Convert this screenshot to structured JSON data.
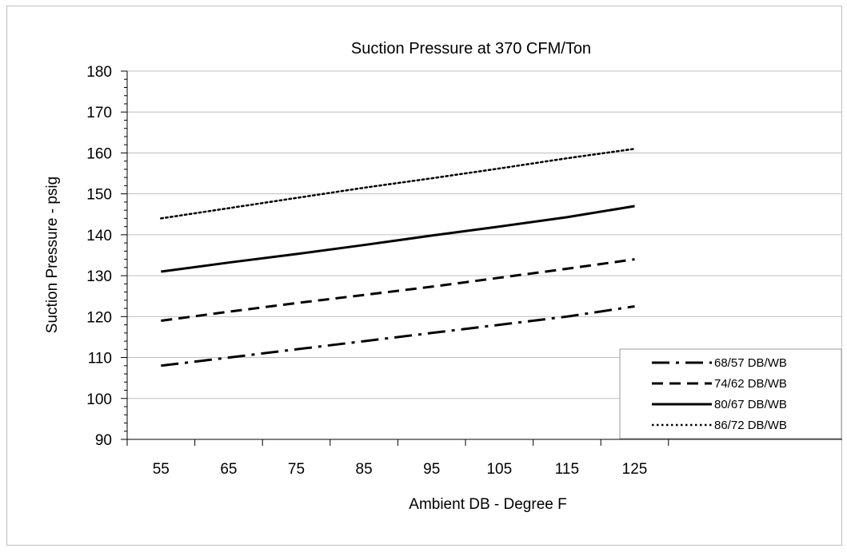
{
  "chart_data": {
    "type": "line",
    "title": "Suction Pressure at 370 CFM/Ton",
    "xlabel": "Ambient DB - Degree F",
    "ylabel": "Suction Pressure - psig",
    "x": [
      55,
      65,
      75,
      85,
      95,
      105,
      115,
      125
    ],
    "x_tick_labels": [
      "55",
      "65",
      "75",
      "85",
      "95",
      "105",
      "115",
      "125"
    ],
    "y_tick_labels": [
      "90",
      "100",
      "110",
      "120",
      "130",
      "140",
      "150",
      "160",
      "170",
      "180"
    ],
    "ylim": [
      90,
      180
    ],
    "grid": "horizontal",
    "legend_position": "bottom-right",
    "series": [
      {
        "name": "68/57 DB/WB",
        "style": "dash-dot",
        "values": [
          108.0,
          110.0,
          112.0,
          114.0,
          116.0,
          118.0,
          120.0,
          122.5
        ]
      },
      {
        "name": "74/62 DB/WB",
        "style": "dashed",
        "values": [
          119.0,
          121.2,
          123.3,
          125.3,
          127.3,
          129.5,
          131.7,
          134.0
        ]
      },
      {
        "name": "80/67 DB/WB",
        "style": "solid",
        "values": [
          131.0,
          133.2,
          135.3,
          137.5,
          139.8,
          142.0,
          144.3,
          147.0
        ]
      },
      {
        "name": "86/72 DB/WB",
        "style": "dotted",
        "values": [
          144.0,
          146.5,
          149.0,
          151.5,
          153.8,
          156.2,
          158.7,
          161.0
        ]
      }
    ]
  }
}
